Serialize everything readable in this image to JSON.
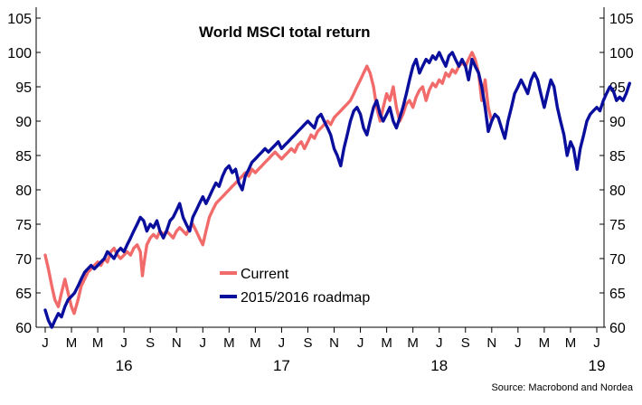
{
  "chart_data": {
    "type": "line",
    "title": "World MSCI total return",
    "source": "Source: Macrobond and Nordea",
    "ylim": [
      60,
      105
    ],
    "yticks": [
      60,
      65,
      70,
      75,
      80,
      85,
      90,
      95,
      100,
      105
    ],
    "months": [
      "J",
      "M",
      "M",
      "J",
      "S",
      "N",
      "J",
      "M",
      "M",
      "J",
      "S",
      "N",
      "J",
      "M",
      "M",
      "J",
      "S",
      "N",
      "J",
      "M",
      "M",
      "J"
    ],
    "years": [
      {
        "label": "16",
        "month_index": 3
      },
      {
        "label": "17",
        "month_index": 9
      },
      {
        "label": "18",
        "month_index": 15
      },
      {
        "label": "19",
        "month_index": 21
      }
    ],
    "x_unit": "month index (0 = Jan 2016)",
    "series": [
      {
        "name": "Current",
        "color": "#f26b6b",
        "points": [
          [
            0.0,
            70.5
          ],
          [
            0.12,
            68.5
          ],
          [
            0.25,
            66
          ],
          [
            0.37,
            64
          ],
          [
            0.5,
            63
          ],
          [
            0.62,
            65
          ],
          [
            0.75,
            67
          ],
          [
            0.87,
            65
          ],
          [
            1.0,
            63
          ],
          [
            1.1,
            62
          ],
          [
            1.25,
            64
          ],
          [
            1.37,
            66
          ],
          [
            1.5,
            67
          ],
          [
            1.62,
            68
          ],
          [
            1.75,
            68.5
          ],
          [
            1.87,
            69
          ],
          [
            2.0,
            69.5
          ],
          [
            2.12,
            69
          ],
          [
            2.25,
            70
          ],
          [
            2.37,
            69.5
          ],
          [
            2.5,
            71
          ],
          [
            2.62,
            71.5
          ],
          [
            2.75,
            70.5
          ],
          [
            2.87,
            70
          ],
          [
            3.0,
            70.5
          ],
          [
            3.12,
            71
          ],
          [
            3.25,
            70.5
          ],
          [
            3.37,
            71.5
          ],
          [
            3.5,
            72
          ],
          [
            3.62,
            71
          ],
          [
            3.7,
            67.5
          ],
          [
            3.75,
            69
          ],
          [
            3.87,
            72
          ],
          [
            4.0,
            73
          ],
          [
            4.12,
            73.5
          ],
          [
            4.25,
            73
          ],
          [
            4.37,
            74
          ],
          [
            4.5,
            73.5
          ],
          [
            4.62,
            74
          ],
          [
            4.75,
            73.5
          ],
          [
            4.87,
            73
          ],
          [
            5.0,
            74
          ],
          [
            5.12,
            74.5
          ],
          [
            5.25,
            74
          ],
          [
            5.37,
            73.5
          ],
          [
            5.5,
            74.5
          ],
          [
            5.62,
            75
          ],
          [
            5.75,
            74
          ],
          [
            5.87,
            73
          ],
          [
            6.0,
            72
          ],
          [
            6.12,
            74
          ],
          [
            6.25,
            76
          ],
          [
            6.37,
            77
          ],
          [
            6.5,
            78
          ],
          [
            6.62,
            78.5
          ],
          [
            6.75,
            79
          ],
          [
            6.87,
            79.5
          ],
          [
            7.0,
            80
          ],
          [
            7.12,
            80.5
          ],
          [
            7.25,
            81
          ],
          [
            7.37,
            81.5
          ],
          [
            7.5,
            82
          ],
          [
            7.62,
            82.5
          ],
          [
            7.75,
            82
          ],
          [
            7.87,
            83
          ],
          [
            8.0,
            82.5
          ],
          [
            8.12,
            83
          ],
          [
            8.25,
            83.5
          ],
          [
            8.37,
            84
          ],
          [
            8.5,
            84.5
          ],
          [
            8.62,
            85
          ],
          [
            8.75,
            85.5
          ],
          [
            8.87,
            85
          ],
          [
            9.0,
            84.5
          ],
          [
            9.12,
            85
          ],
          [
            9.25,
            85.5
          ],
          [
            9.37,
            86
          ],
          [
            9.5,
            85.5
          ],
          [
            9.62,
            86.5
          ],
          [
            9.75,
            87
          ],
          [
            9.87,
            86
          ],
          [
            10.0,
            87
          ],
          [
            10.12,
            88
          ],
          [
            10.25,
            87.5
          ],
          [
            10.37,
            88.5
          ],
          [
            10.5,
            89
          ],
          [
            10.62,
            89.5
          ],
          [
            10.75,
            90
          ],
          [
            10.87,
            89.5
          ],
          [
            11.0,
            90.5
          ],
          [
            11.12,
            91
          ],
          [
            11.25,
            91.5
          ],
          [
            11.37,
            92
          ],
          [
            11.5,
            92.5
          ],
          [
            11.62,
            93
          ],
          [
            11.75,
            94
          ],
          [
            11.87,
            95
          ],
          [
            12.0,
            96
          ],
          [
            12.12,
            97
          ],
          [
            12.25,
            98
          ],
          [
            12.37,
            97
          ],
          [
            12.5,
            95
          ],
          [
            12.62,
            92
          ],
          [
            12.75,
            90
          ],
          [
            12.87,
            92
          ],
          [
            13.0,
            94
          ],
          [
            13.12,
            93
          ],
          [
            13.25,
            95
          ],
          [
            13.37,
            92
          ],
          [
            13.5,
            90
          ],
          [
            13.62,
            91
          ],
          [
            13.75,
            92.5
          ],
          [
            13.87,
            93
          ],
          [
            14.0,
            92
          ],
          [
            14.12,
            93.5
          ],
          [
            14.25,
            94.5
          ],
          [
            14.37,
            95
          ],
          [
            14.5,
            93
          ],
          [
            14.62,
            94.5
          ],
          [
            14.75,
            95.5
          ],
          [
            14.87,
            95
          ],
          [
            15.0,
            96
          ],
          [
            15.12,
            95.5
          ],
          [
            15.25,
            97
          ],
          [
            15.37,
            96.5
          ],
          [
            15.5,
            97.5
          ],
          [
            15.62,
            97
          ],
          [
            15.75,
            98
          ],
          [
            15.87,
            98.5
          ],
          [
            16.0,
            98
          ],
          [
            16.12,
            99
          ],
          [
            16.25,
            100
          ],
          [
            16.37,
            99
          ],
          [
            16.5,
            97
          ],
          [
            16.62,
            93
          ],
          [
            16.75,
            96
          ],
          [
            16.87,
            92
          ],
          [
            17.0,
            90
          ]
        ]
      },
      {
        "name": "2015/2016 roadmap",
        "color": "#0a0e9c",
        "points": [
          [
            0.0,
            62.5
          ],
          [
            0.12,
            61
          ],
          [
            0.25,
            60
          ],
          [
            0.37,
            61
          ],
          [
            0.5,
            62
          ],
          [
            0.62,
            61.5
          ],
          [
            0.75,
            63
          ],
          [
            0.87,
            64
          ],
          [
            1.0,
            64.5
          ],
          [
            1.12,
            65
          ],
          [
            1.25,
            66
          ],
          [
            1.37,
            67
          ],
          [
            1.5,
            68
          ],
          [
            1.62,
            68.5
          ],
          [
            1.75,
            69
          ],
          [
            1.87,
            68.5
          ],
          [
            2.0,
            69
          ],
          [
            2.12,
            69.5
          ],
          [
            2.25,
            70
          ],
          [
            2.37,
            71
          ],
          [
            2.5,
            70.5
          ],
          [
            2.62,
            70
          ],
          [
            2.75,
            71
          ],
          [
            2.87,
            71.5
          ],
          [
            3.0,
            71
          ],
          [
            3.12,
            72
          ],
          [
            3.25,
            73
          ],
          [
            3.37,
            74
          ],
          [
            3.5,
            75
          ],
          [
            3.62,
            76
          ],
          [
            3.75,
            75.5
          ],
          [
            3.87,
            74
          ],
          [
            4.0,
            75
          ],
          [
            4.12,
            74.5
          ],
          [
            4.25,
            75.5
          ],
          [
            4.37,
            74
          ],
          [
            4.5,
            73
          ],
          [
            4.62,
            74
          ],
          [
            4.75,
            75.5
          ],
          [
            4.87,
            76
          ],
          [
            5.0,
            77
          ],
          [
            5.12,
            78
          ],
          [
            5.25,
            76
          ],
          [
            5.37,
            75
          ],
          [
            5.5,
            74
          ],
          [
            5.62,
            76
          ],
          [
            5.75,
            77
          ],
          [
            5.87,
            78
          ],
          [
            6.0,
            79
          ],
          [
            6.12,
            78
          ],
          [
            6.25,
            79
          ],
          [
            6.37,
            80
          ],
          [
            6.5,
            81
          ],
          [
            6.62,
            80.5
          ],
          [
            6.75,
            82
          ],
          [
            6.87,
            83
          ],
          [
            7.0,
            83.5
          ],
          [
            7.12,
            82.5
          ],
          [
            7.25,
            83
          ],
          [
            7.37,
            81
          ],
          [
            7.5,
            80
          ],
          [
            7.62,
            82
          ],
          [
            7.75,
            83
          ],
          [
            7.87,
            84
          ],
          [
            8.0,
            84.5
          ],
          [
            8.12,
            85
          ],
          [
            8.25,
            85.5
          ],
          [
            8.37,
            86
          ],
          [
            8.5,
            85.5
          ],
          [
            8.62,
            86
          ],
          [
            8.75,
            86.5
          ],
          [
            8.87,
            87
          ],
          [
            9.0,
            86
          ],
          [
            9.12,
            86.5
          ],
          [
            9.25,
            87
          ],
          [
            9.37,
            87.5
          ],
          [
            9.5,
            88
          ],
          [
            9.62,
            88.5
          ],
          [
            9.75,
            89
          ],
          [
            9.87,
            89.5
          ],
          [
            10.0,
            90
          ],
          [
            10.12,
            89.5
          ],
          [
            10.25,
            89
          ],
          [
            10.37,
            90.5
          ],
          [
            10.5,
            91
          ],
          [
            10.62,
            90
          ],
          [
            10.75,
            89
          ],
          [
            10.87,
            88
          ],
          [
            11.0,
            86
          ],
          [
            11.12,
            85
          ],
          [
            11.25,
            83.5
          ],
          [
            11.37,
            86
          ],
          [
            11.5,
            88
          ],
          [
            11.62,
            90
          ],
          [
            11.75,
            91.5
          ],
          [
            11.87,
            92
          ],
          [
            12.0,
            91
          ],
          [
            12.12,
            89
          ],
          [
            12.25,
            88
          ],
          [
            12.37,
            90
          ],
          [
            12.5,
            92
          ],
          [
            12.62,
            93
          ],
          [
            12.75,
            91
          ],
          [
            12.87,
            90
          ],
          [
            13.0,
            91
          ],
          [
            13.12,
            92
          ],
          [
            13.25,
            90
          ],
          [
            13.37,
            89
          ],
          [
            13.5,
            90.5
          ],
          [
            13.62,
            92
          ],
          [
            13.75,
            94
          ],
          [
            13.87,
            96
          ],
          [
            14.0,
            98
          ],
          [
            14.12,
            99
          ],
          [
            14.25,
            97
          ],
          [
            14.37,
            98
          ],
          [
            14.5,
            99
          ],
          [
            14.62,
            98.5
          ],
          [
            14.75,
            99.5
          ],
          [
            14.87,
            99
          ],
          [
            15.0,
            100
          ],
          [
            15.12,
            99
          ],
          [
            15.25,
            98
          ],
          [
            15.37,
            99.5
          ],
          [
            15.5,
            100
          ],
          [
            15.62,
            99
          ],
          [
            15.75,
            98
          ],
          [
            15.87,
            99
          ],
          [
            16.0,
            98
          ],
          [
            16.12,
            96
          ],
          [
            16.25,
            99
          ],
          [
            16.37,
            98
          ],
          [
            16.5,
            97
          ],
          [
            16.62,
            95
          ],
          [
            16.75,
            92
          ],
          [
            16.87,
            88.5
          ],
          [
            17.0,
            90
          ],
          [
            17.12,
            91
          ],
          [
            17.25,
            90.5
          ],
          [
            17.37,
            89
          ],
          [
            17.5,
            87.5
          ],
          [
            17.62,
            90
          ],
          [
            17.75,
            92
          ],
          [
            17.87,
            94
          ],
          [
            18.0,
            95
          ],
          [
            18.12,
            96
          ],
          [
            18.25,
            95
          ],
          [
            18.37,
            94
          ],
          [
            18.5,
            96
          ],
          [
            18.62,
            97
          ],
          [
            18.75,
            96
          ],
          [
            18.87,
            94
          ],
          [
            19.0,
            92
          ],
          [
            19.12,
            94
          ],
          [
            19.25,
            96
          ],
          [
            19.37,
            95
          ],
          [
            19.5,
            92
          ],
          [
            19.62,
            90
          ],
          [
            19.75,
            88
          ],
          [
            19.87,
            85
          ],
          [
            20.0,
            87
          ],
          [
            20.12,
            86
          ],
          [
            20.25,
            83
          ],
          [
            20.37,
            86
          ],
          [
            20.5,
            88
          ],
          [
            20.62,
            90
          ],
          [
            20.75,
            91
          ],
          [
            20.87,
            91.5
          ],
          [
            21.0,
            92
          ],
          [
            21.12,
            91.5
          ],
          [
            21.25,
            93
          ],
          [
            21.37,
            94
          ],
          [
            21.5,
            95
          ],
          [
            21.62,
            94.5
          ],
          [
            21.75,
            93
          ],
          [
            21.87,
            93.5
          ],
          [
            22.0,
            93
          ],
          [
            22.12,
            94
          ],
          [
            22.25,
            95.5
          ]
        ]
      }
    ]
  }
}
